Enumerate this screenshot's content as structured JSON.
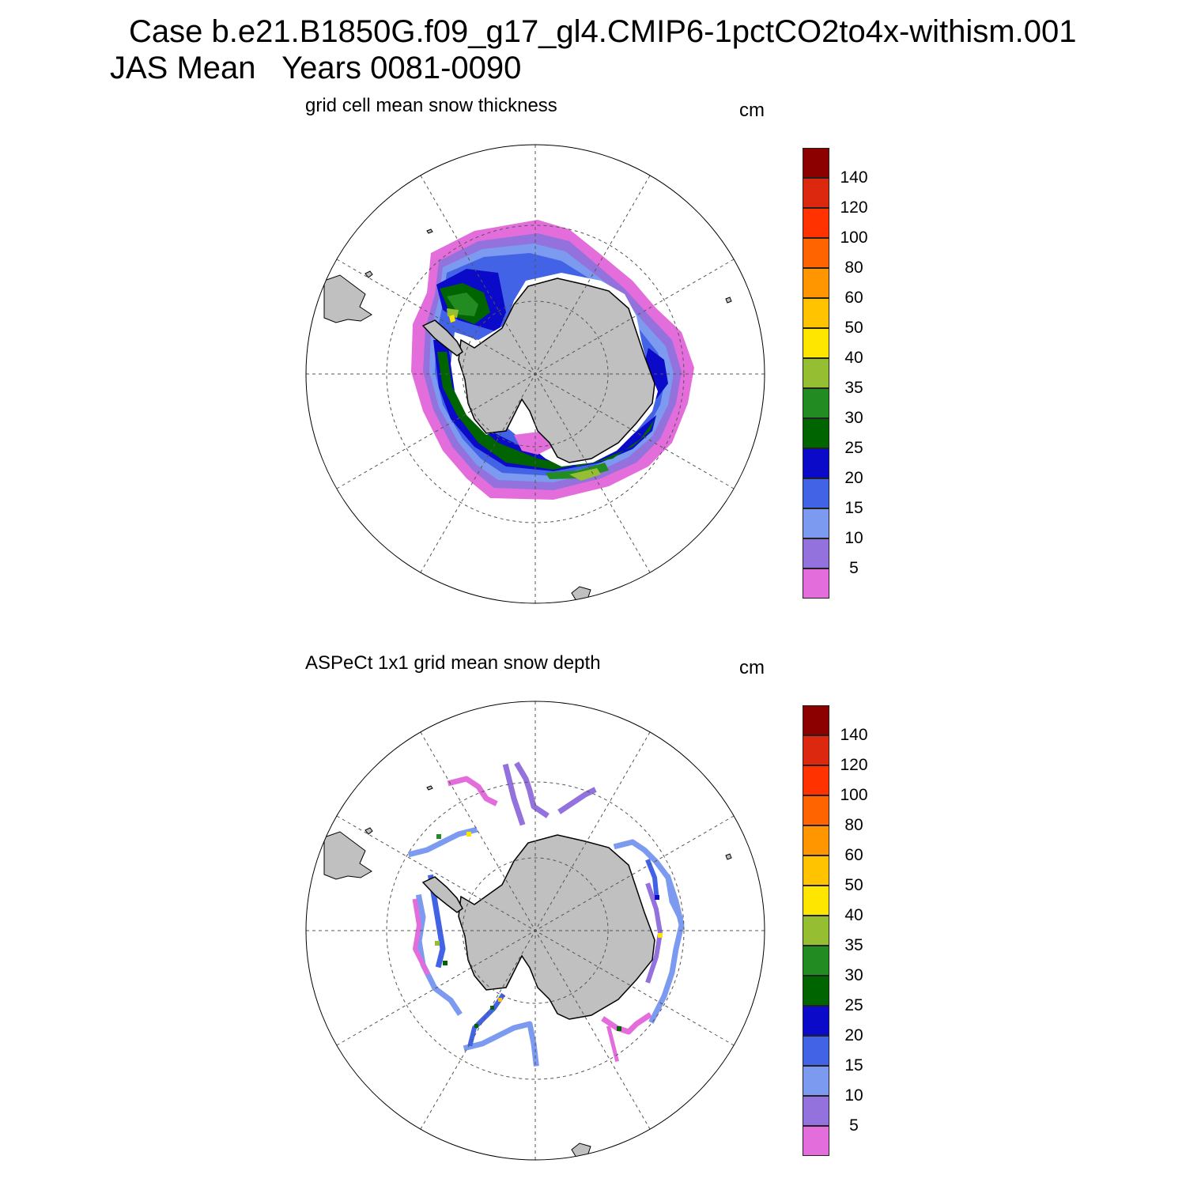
{
  "title": {
    "line1": "Case b.e21.B1850G.f09_g17_gl4.CMIP6-1pctCO2to4x-withism.001",
    "line2": "JAS Mean   Years 0081-0090"
  },
  "panels": [
    {
      "id": "model",
      "subtitle": "grid cell mean snow thickness",
      "units": "cm"
    },
    {
      "id": "obs",
      "subtitle": "ASPeCt 1x1 grid mean snow depth",
      "units": "cm"
    }
  ],
  "colorbar": {
    "labels": [
      "5",
      "10",
      "15",
      "20",
      "25",
      "30",
      "35",
      "40",
      "50",
      "60",
      "80",
      "100",
      "120",
      "140"
    ],
    "colors": [
      "#e46ddc",
      "#9372dd",
      "#7b9af0",
      "#4263e6",
      "#0a0ac8",
      "#006400",
      "#228b22",
      "#96be32",
      "#ffe600",
      "#ffc300",
      "#ff9600",
      "#ff6400",
      "#ff3200",
      "#dc280f",
      "#8c0000"
    ]
  },
  "map_style": {
    "land": "#c0c0c0",
    "ice_shelf": "#ffffff",
    "grid_line": "#555555",
    "projection": "south polar stereographic"
  }
}
